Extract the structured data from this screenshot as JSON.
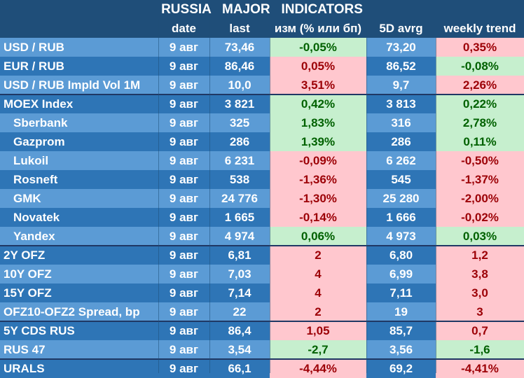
{
  "title": "RUSSIA   MAJOR   INDICATORS",
  "headers": [
    "",
    "date",
    "last",
    "изм (% или бп)",
    "5D avrg",
    "weekly trend"
  ],
  "groups": [
    {
      "rows": [
        {
          "name": "USD / RUB",
          "date": "9 авг",
          "last": "73,46",
          "chg": "-0,05%",
          "chg_sign": "pos",
          "avg": "73,20",
          "trend": "0,35%",
          "trend_sign": "neg"
        },
        {
          "name": "EUR / RUB",
          "date": "9 авг",
          "last": "86,46",
          "chg": "0,05%",
          "chg_sign": "neg",
          "avg": "86,52",
          "trend": "-0,08%",
          "trend_sign": "pos"
        },
        {
          "name": "USD / RUB Impld Vol 1M",
          "date": "9 авг",
          "last": "10,0",
          "chg": "3,51%",
          "chg_sign": "neg",
          "avg": "9,7",
          "trend": "2,26%",
          "trend_sign": "neg"
        }
      ]
    },
    {
      "rows": [
        {
          "name": "MOEX Index",
          "date": "9 авг",
          "last": "3 821",
          "chg": "0,42%",
          "chg_sign": "pos",
          "avg": "3 813",
          "trend": "0,22%",
          "trend_sign": "pos"
        },
        {
          "name": "Sberbank",
          "indent": true,
          "date": "9 авг",
          "last": "325",
          "chg": "1,83%",
          "chg_sign": "pos",
          "avg": "316",
          "trend": "2,78%",
          "trend_sign": "pos"
        },
        {
          "name": "Gazprom",
          "indent": true,
          "date": "9 авг",
          "last": "286",
          "chg": "1,39%",
          "chg_sign": "pos",
          "avg": "286",
          "trend": "0,11%",
          "trend_sign": "pos"
        },
        {
          "name": "Lukoil",
          "indent": true,
          "date": "9 авг",
          "last": "6 231",
          "chg": "-0,09%",
          "chg_sign": "neg",
          "avg": "6 262",
          "trend": "-0,50%",
          "trend_sign": "neg"
        },
        {
          "name": "Rosneft",
          "indent": true,
          "date": "9 авг",
          "last": "538",
          "chg": "-1,36%",
          "chg_sign": "neg",
          "avg": "545",
          "trend": "-1,37%",
          "trend_sign": "neg"
        },
        {
          "name": "GMK",
          "indent": true,
          "date": "9 авг",
          "last": "24 776",
          "chg": "-1,30%",
          "chg_sign": "neg",
          "avg": "25 280",
          "trend": "-2,00%",
          "trend_sign": "neg"
        },
        {
          "name": "Novatek",
          "indent": true,
          "date": "9 авг",
          "last": "1 665",
          "chg": "-0,14%",
          "chg_sign": "neg",
          "avg": "1 666",
          "trend": "-0,02%",
          "trend_sign": "neg"
        },
        {
          "name": "Yandex",
          "indent": true,
          "date": "9 авг",
          "last": "4 974",
          "chg": "0,06%",
          "chg_sign": "pos",
          "avg": "4 973",
          "trend": "0,03%",
          "trend_sign": "pos"
        }
      ]
    },
    {
      "rows": [
        {
          "name": "2Y OFZ",
          "date": "9 авг",
          "last": "6,81",
          "chg": "2",
          "chg_sign": "neg",
          "avg": "6,80",
          "trend": "1,2",
          "trend_sign": "neg"
        },
        {
          "name": "10Y OFZ",
          "date": "9 авг",
          "last": "7,03",
          "chg": "4",
          "chg_sign": "neg",
          "avg": "6,99",
          "trend": "3,8",
          "trend_sign": "neg"
        },
        {
          "name": "15Y OFZ",
          "date": "9 авг",
          "last": "7,14",
          "chg": "4",
          "chg_sign": "neg",
          "avg": "7,11",
          "trend": "3,0",
          "trend_sign": "neg"
        },
        {
          "name": "OFZ10-OFZ2 Spread, bp",
          "date": "9 авг",
          "last": "22",
          "chg": "2",
          "chg_sign": "neg",
          "avg": "19",
          "trend": "3",
          "trend_sign": "neg"
        }
      ]
    },
    {
      "rows": [
        {
          "name": "5Y CDS RUS",
          "date": "9 авг",
          "last": "86,4",
          "chg": "1,05",
          "chg_sign": "neg",
          "avg": "85,7",
          "trend": "0,7",
          "trend_sign": "neg"
        },
        {
          "name": "RUS 47",
          "date": "9 авг",
          "last": "3,54",
          "chg": "-2,7",
          "chg_sign": "pos",
          "avg": "3,56",
          "trend": "-1,6",
          "trend_sign": "pos"
        }
      ]
    },
    {
      "rows": [
        {
          "name": "URALS",
          "date": "9 авг",
          "last": "66,1",
          "chg": "-4,44%",
          "chg_sign": "neg",
          "avg": "69,2",
          "trend": "-4,41%",
          "trend_sign": "neg"
        }
      ]
    }
  ],
  "colors": {
    "header_bg": "#1f4e79",
    "row_light": "#5b9bd5",
    "row_dark": "#2e75b6",
    "positive_bg": "#c6efce",
    "positive_text": "#006100",
    "negative_bg": "#ffc7ce",
    "negative_text": "#9c0006"
  }
}
